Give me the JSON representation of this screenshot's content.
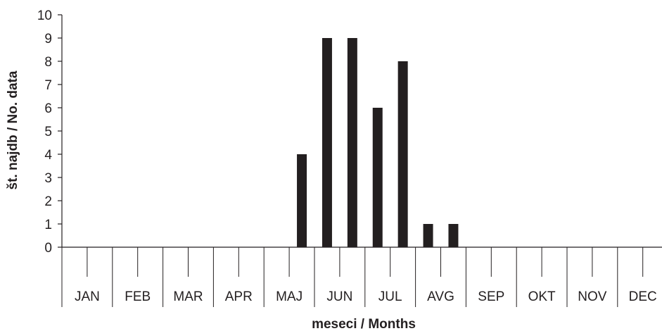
{
  "chart_data": {
    "type": "bar",
    "xlabel": "meseci / Months",
    "ylabel": "št. najdb / No. data",
    "ylim": [
      0,
      10
    ],
    "yticks": [
      "0",
      "1",
      "2",
      "3",
      "4",
      "5",
      "6",
      "7",
      "8",
      "9",
      "10"
    ],
    "months": [
      "JAN",
      "FEB",
      "MAR",
      "APR",
      "MAJ",
      "JUN",
      "JUL",
      "AVG",
      "SEP",
      "OKT",
      "NOV",
      "DEC"
    ],
    "bars_per_month": 2,
    "categories": [
      "JAN-1",
      "JAN-2",
      "FEB-1",
      "FEB-2",
      "MAR-1",
      "MAR-2",
      "APR-1",
      "APR-2",
      "MAJ-1",
      "MAJ-2",
      "JUN-1",
      "JUN-2",
      "JUL-1",
      "JUL-2",
      "AVG-1",
      "AVG-2",
      "SEP-1",
      "SEP-2",
      "OKT-1",
      "OKT-2",
      "NOV-1",
      "NOV-2",
      "DEC-1",
      "DEC-2"
    ],
    "values": [
      0,
      0,
      0,
      0,
      0,
      0,
      0,
      0,
      0,
      4,
      9,
      9,
      6,
      8,
      1,
      1,
      0,
      0,
      0,
      0,
      0,
      0,
      0,
      0
    ],
    "grid": false,
    "bar_color": "#231f20",
    "axis_color": "#231f20"
  }
}
